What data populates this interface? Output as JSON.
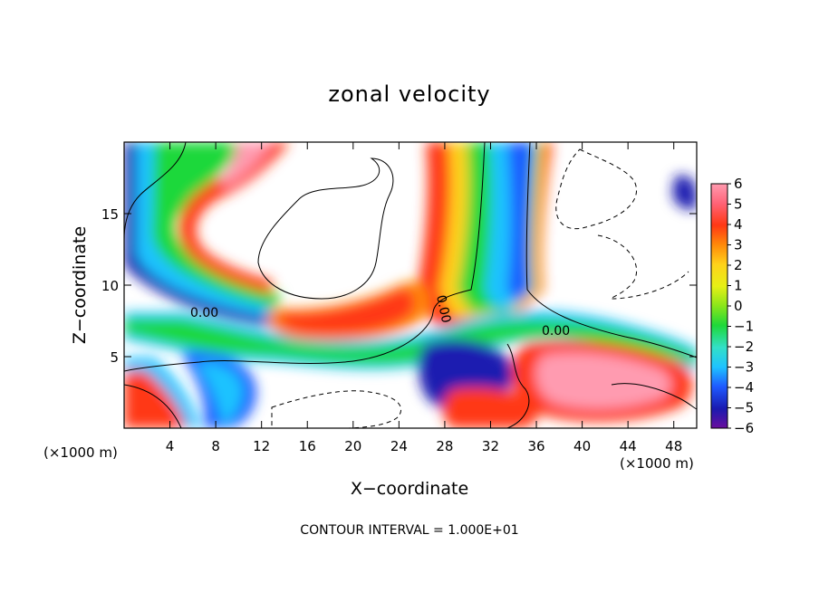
{
  "chart_data": {
    "type": "heatmap",
    "title": "zonal velocity",
    "xlabel": "X−coordinate",
    "ylabel": "Z−coordinate",
    "x_unit_label": "(×1000 m)",
    "y_unit_label": "(×1000 m)",
    "xlim": [
      0,
      50
    ],
    "ylim": [
      0,
      20
    ],
    "x_ticks": [
      "4",
      "8",
      "12",
      "16",
      "20",
      "24",
      "28",
      "32",
      "36",
      "40",
      "44",
      "48"
    ],
    "y_ticks": [
      "5",
      "10",
      "15"
    ],
    "colorbar": {
      "min": -6,
      "max": 6,
      "tick_labels": [
        "6",
        "5",
        "4",
        "3",
        "2",
        "1",
        "0",
        "−1",
        "−2",
        "−3",
        "−4",
        "−5",
        "−6"
      ],
      "colors": [
        "#6a0f9e",
        "#1a1ab0",
        "#1f5aff",
        "#1ec3ff",
        "#33e0c8",
        "#1ed83a",
        "#8ae61a",
        "#e6f016",
        "#ffd21a",
        "#ff8a0a",
        "#ff3814",
        "#ff6478",
        "#ff9bb0"
      ]
    },
    "contour_label": "0.00",
    "annotation": "CONTOUR INTERVAL = 1.000E+01",
    "grid": false
  }
}
